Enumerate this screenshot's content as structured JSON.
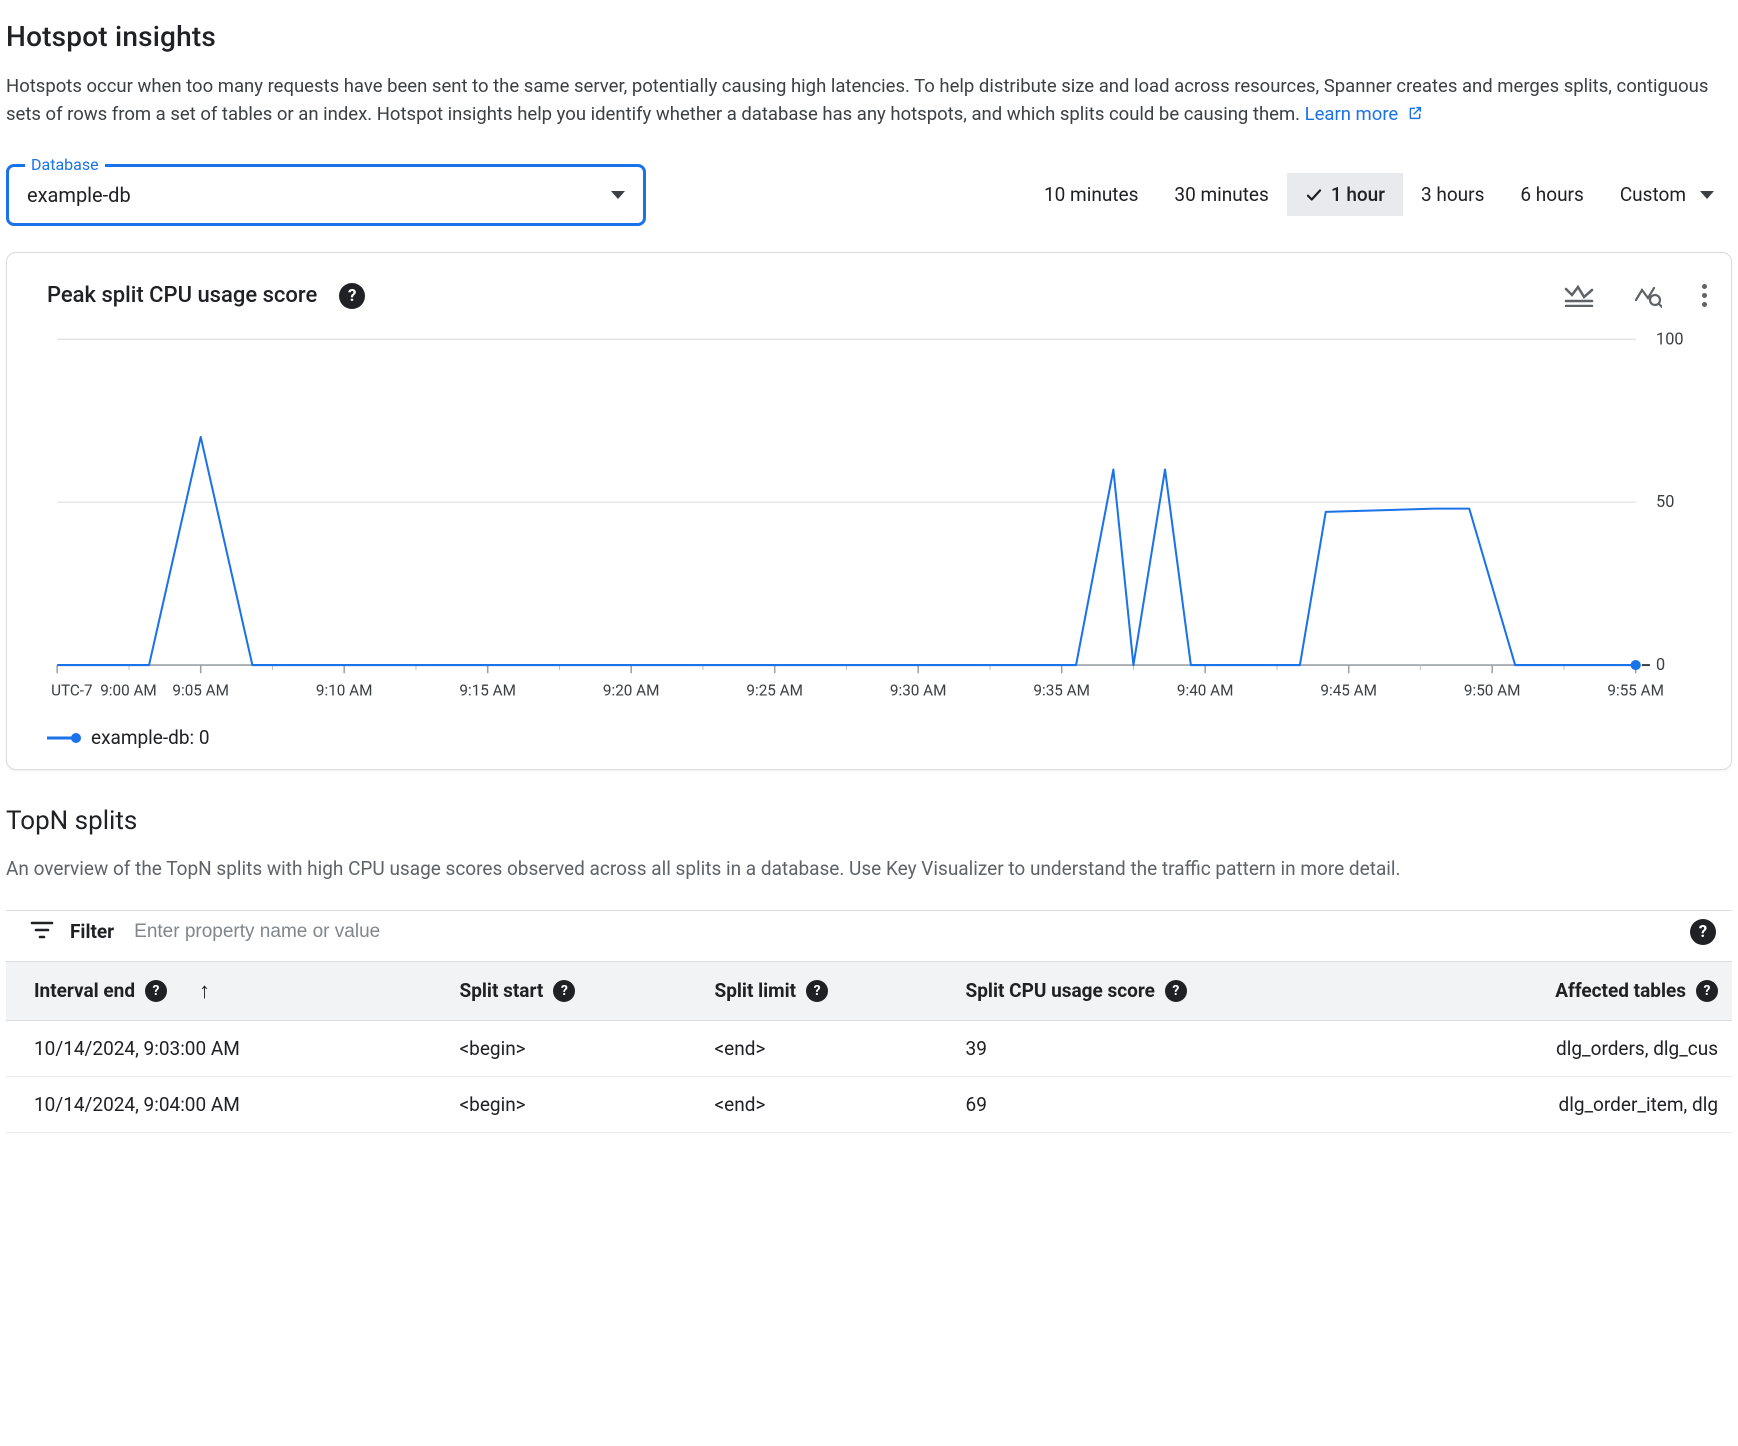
{
  "page": {
    "title": "Hotspot insights",
    "intro_1": "Hotspots occur when too many requests have been sent to the same server, potentially causing high latencies. To help distribute size and load across resources, Spanner creates and merges splits, contiguous sets of rows from a set of tables or an index. Hotspot insights help you identify whether a database has any hotspots, and which splits could be causing them. ",
    "learn_more": "Learn more"
  },
  "database_picker": {
    "label": "Database",
    "value": "example-db"
  },
  "timerange": {
    "options": [
      "10 minutes",
      "30 minutes",
      "1 hour",
      "3 hours",
      "6 hours",
      "Custom"
    ],
    "selected_index": 2
  },
  "chart": {
    "title": "Peak split CPU usage score",
    "type": "line",
    "series_name": "example-db",
    "series_color": "#1a73e8",
    "current_value": "0",
    "ylim": [
      0,
      100
    ],
    "ytick_step": 50,
    "ylabels": [
      "0",
      "50",
      "100"
    ],
    "grid_color": "#dadce0",
    "axis_color": "#5f6368",
    "background_color": "#ffffff",
    "line_width": 2,
    "marker_radius": 5,
    "tz_label": "UTC-7",
    "x_ticks": [
      "9:00 AM",
      "9:05 AM",
      "9:10 AM",
      "9:15 AM",
      "9:20 AM",
      "9:25 AM",
      "9:30 AM",
      "9:35 AM",
      "9:40 AM",
      "9:45 AM",
      "9:50 AM",
      "9:55 AM"
    ],
    "x_domain_minutes": [
      0,
      55
    ],
    "points_minutes_value": [
      [
        0,
        0
      ],
      [
        3.2,
        0
      ],
      [
        5,
        70
      ],
      [
        6.8,
        0
      ],
      [
        35.5,
        0
      ],
      [
        36.8,
        60
      ],
      [
        37.5,
        0
      ],
      [
        38.6,
        60
      ],
      [
        39.5,
        0
      ],
      [
        43.3,
        0
      ],
      [
        44.2,
        47
      ],
      [
        48,
        48
      ],
      [
        49.2,
        48
      ],
      [
        50.8,
        0
      ],
      [
        55,
        0
      ]
    ],
    "end_marker": true
  },
  "topn": {
    "title": "TopN splits",
    "description": "An overview of the TopN splits with high CPU usage scores observed across all splits in a database. Use Key Visualizer to understand the traffic pattern in more detail.",
    "filter_label": "Filter",
    "filter_placeholder": "Enter property name or value",
    "columns": [
      "Interval end",
      "Split start",
      "Split limit",
      "Split CPU usage score",
      "Affected tables"
    ],
    "sort_col": 0,
    "sort_dir": "asc",
    "rows": [
      {
        "interval_end": "10/14/2024, 9:03:00 AM",
        "split_start": "<begin>",
        "split_limit": "<end>",
        "score": "39",
        "affected": "dlg_orders, dlg_cus"
      },
      {
        "interval_end": "10/14/2024, 9:04:00 AM",
        "split_start": "<begin>",
        "split_limit": "<end>",
        "score": "69",
        "affected": "dlg_order_item, dlg"
      }
    ]
  }
}
